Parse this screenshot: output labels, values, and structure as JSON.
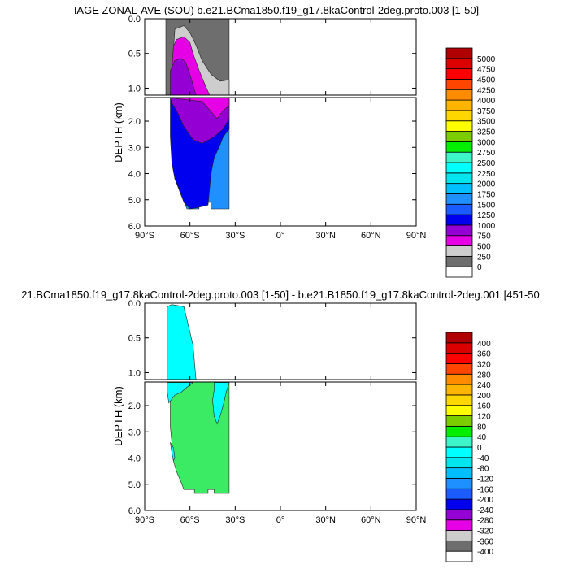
{
  "chart_data": [
    {
      "type": "heatmap",
      "title": "IAGE ZONAL-AVE (SOU) b.e21.BCma1850.f19_g17.8kaControl-2deg.proto.003 [1-50]",
      "ylabel": "DEPTH (km)",
      "x_ticks": [
        "90°S",
        "60°S",
        "30°S",
        "0°",
        "30°N",
        "60°N",
        "90°N"
      ],
      "x_tick_values": [
        -90,
        -60,
        -30,
        0,
        30,
        60,
        90
      ],
      "xlim": [
        -90,
        90
      ],
      "y_upper_ticks": [
        "0.0",
        "0.5",
        "1.0"
      ],
      "y_upper_values": [
        0,
        0.5,
        1.0
      ],
      "y_lower_ticks": [
        "2.0",
        "3.0",
        "4.0",
        "5.0",
        "6.0"
      ],
      "y_lower_values": [
        2,
        3,
        4,
        5,
        6
      ],
      "ylim_upper": [
        0,
        1.1
      ],
      "ylim_lower": [
        1.1,
        6
      ],
      "colorbar": {
        "levels": [
          "0",
          "250",
          "500",
          "750",
          "1000",
          "1250",
          "1500",
          "1750",
          "2000",
          "2250",
          "2500",
          "2750",
          "3000",
          "3250",
          "3500",
          "3750",
          "4000",
          "4250",
          "4500",
          "4750",
          "5000"
        ],
        "colors": [
          "#ffffff",
          "#6e6e6e",
          "#cdcdcd",
          "#e600e6",
          "#9400d3",
          "#0000ee",
          "#1a5cff",
          "#1e90ff",
          "#00bfff",
          "#00e5ee",
          "#00ffff",
          "#3cf5c8",
          "#00ee00",
          "#7ccd00",
          "#ffff00",
          "#ffd700",
          "#ffb400",
          "#ff8c00",
          "#ff4500",
          "#ff0000",
          "#dd0000",
          "#b00000"
        ]
      },
      "regions": [
        {
          "color": "#1e90ff",
          "poly": [
            [
              -72,
              1.12
            ],
            [
              -34,
              1.12
            ],
            [
              -34,
              5.35
            ],
            [
              -46,
              5.35
            ],
            [
              -46,
              5.1
            ],
            [
              -54,
              5.1
            ],
            [
              -54,
              5.35
            ],
            [
              -62,
              5.35
            ],
            [
              -66,
              4.8
            ],
            [
              -70,
              4.2
            ],
            [
              -72,
              3.0
            ]
          ]
        },
        {
          "color": "#0000ee",
          "poly": [
            [
              -73,
              1.12
            ],
            [
              -34,
              1.12
            ],
            [
              -34,
              2.3
            ],
            [
              -38,
              2.6
            ],
            [
              -40,
              2.9
            ],
            [
              -44,
              3.4
            ],
            [
              -46,
              4.0
            ],
            [
              -47,
              4.6
            ],
            [
              -48,
              5.2
            ],
            [
              -55,
              5.3
            ],
            [
              -60,
              5.35
            ],
            [
              -64,
              5.1
            ],
            [
              -67,
              4.6
            ],
            [
              -70,
              4.2
            ],
            [
              -72,
              3.6
            ],
            [
              -73,
              2.6
            ]
          ]
        },
        {
          "color": "#9400d3",
          "poly": [
            [
              -73,
              1.12
            ],
            [
              -34,
              1.12
            ],
            [
              -34,
              1.9
            ],
            [
              -38,
              2.3
            ],
            [
              -44,
              2.6
            ],
            [
              -52,
              2.85
            ],
            [
              -58,
              2.7
            ],
            [
              -64,
              2.2
            ],
            [
              -68,
              1.7
            ],
            [
              -72,
              1.3
            ]
          ]
        },
        {
          "color": "#e600e6",
          "poly": [
            [
              -72,
              1.12
            ],
            [
              -34,
              1.12
            ],
            [
              -34,
              1.4
            ],
            [
              -38,
              1.6
            ],
            [
              -42,
              1.9
            ],
            [
              -48,
              1.5
            ],
            [
              -52,
              1.25
            ]
          ]
        },
        {
          "color": "#6e6e6e",
          "poly": [
            [
              -76,
              0
            ],
            [
              -34,
              0
            ],
            [
              -34,
              1.1
            ],
            [
              -76,
              1.1
            ]
          ]
        },
        {
          "color": "#cdcdcd",
          "poly": [
            [
              -70,
              0.15
            ],
            [
              -64,
              0.1
            ],
            [
              -60,
              0.2
            ],
            [
              -56,
              0.38
            ],
            [
              -52,
              0.6
            ],
            [
              -46,
              0.8
            ],
            [
              -40,
              0.9
            ],
            [
              -34,
              0.88
            ],
            [
              -34,
              1.1
            ],
            [
              -73,
              1.1
            ]
          ]
        },
        {
          "color": "#e600e6",
          "poly": [
            [
              -71,
              0.4
            ],
            [
              -69,
              0.3
            ],
            [
              -64,
              0.26
            ],
            [
              -60,
              0.34
            ],
            [
              -58,
              0.5
            ],
            [
              -54,
              0.74
            ],
            [
              -50,
              0.95
            ],
            [
              -47,
              1.1
            ],
            [
              -73,
              1.1
            ]
          ]
        },
        {
          "color": "#9400d3",
          "poly": [
            [
              -73,
              0.75
            ],
            [
              -70,
              0.6
            ],
            [
              -66,
              0.57
            ],
            [
              -63,
              0.62
            ],
            [
              -60,
              0.8
            ],
            [
              -58,
              0.95
            ],
            [
              -56,
              1.1
            ],
            [
              -73,
              1.1
            ]
          ]
        }
      ]
    },
    {
      "type": "heatmap",
      "title": "21.BCma1850.f19_g17.8kaControl-2deg.proto.003 [1-50] - b.e21.B1850.f19_g17.8kaControl-2deg.001 [451-50",
      "ylabel": "DEPTH (km)",
      "x_ticks": [
        "90°S",
        "60°S",
        "30°S",
        "0°",
        "30°N",
        "60°N",
        "90°N"
      ],
      "x_tick_values": [
        -90,
        -60,
        -30,
        0,
        30,
        60,
        90
      ],
      "xlim": [
        -90,
        90
      ],
      "y_upper_ticks": [
        "0.0",
        "0.5",
        "1.0"
      ],
      "y_upper_values": [
        0,
        0.5,
        1.0
      ],
      "y_lower_ticks": [
        "2.0",
        "3.0",
        "4.0",
        "5.0",
        "6.0"
      ],
      "y_lower_values": [
        2,
        3,
        4,
        5,
        6
      ],
      "ylim_upper": [
        0,
        1.1
      ],
      "ylim_lower": [
        1.1,
        6
      ],
      "colorbar": {
        "levels": [
          "-400",
          "-360",
          "-320",
          "-280",
          "-240",
          "-200",
          "-160",
          "-120",
          "-80",
          "-40",
          "0",
          "40",
          "80",
          "120",
          "160",
          "200",
          "240",
          "280",
          "320",
          "360",
          "400"
        ],
        "colors": [
          "#ffffff",
          "#6e6e6e",
          "#cdcdcd",
          "#e600e6",
          "#9400d3",
          "#0000ee",
          "#1a5cff",
          "#1e90ff",
          "#00bfff",
          "#00e5ee",
          "#00ffff",
          "#3cf5c8",
          "#00ee00",
          "#7ccd00",
          "#ffff00",
          "#ffd700",
          "#ffb400",
          "#ff8c00",
          "#ff4500",
          "#ff0000",
          "#dd0000",
          "#b00000"
        ]
      },
      "regions": [
        {
          "color": "#3ceb64",
          "poly": [
            [
              -76,
              0
            ],
            [
              -34,
              0
            ],
            [
              -34,
              5.35
            ],
            [
              -44,
              5.35
            ],
            [
              -44,
              5.2
            ],
            [
              -48,
              5.2
            ],
            [
              -48,
              5.35
            ],
            [
              -57,
              5.35
            ],
            [
              -57,
              5.2
            ],
            [
              -64,
              5.2
            ],
            [
              -66,
              4.9
            ],
            [
              -69,
              4.5
            ],
            [
              -71,
              4.1
            ],
            [
              -72,
              3.4
            ],
            [
              -73,
              2.8
            ],
            [
              -73,
              1.12
            ],
            [
              -76,
              1.1
            ]
          ]
        },
        {
          "color": "#00ffff",
          "poly": [
            [
              -75,
              0.05
            ],
            [
              -72,
              0.02
            ],
            [
              -64,
              0.05
            ],
            [
              -58,
              0.6
            ],
            [
              -56,
              1.1
            ],
            [
              -75,
              1.1
            ]
          ]
        },
        {
          "color": "#00ffff",
          "poly": [
            [
              -75,
              1.12
            ],
            [
              -58,
              1.12
            ],
            [
              -62,
              1.3
            ],
            [
              -66,
              1.5
            ],
            [
              -70,
              1.6
            ],
            [
              -74,
              1.9
            ],
            [
              -75,
              1.5
            ]
          ]
        },
        {
          "color": "#00ffff",
          "poly": [
            [
              -44,
              1.12
            ],
            [
              -34,
              1.12
            ],
            [
              -36,
              1.5
            ],
            [
              -38,
              2.0
            ],
            [
              -40,
              2.4
            ],
            [
              -42,
              2.7
            ],
            [
              -44,
              2.4
            ],
            [
              -45,
              1.8
            ],
            [
              -44,
              1.4
            ]
          ]
        },
        {
          "color": "#00ffff",
          "poly": [
            [
              -73,
              3.4
            ],
            [
              -71,
              3.6
            ],
            [
              -70,
              4.0
            ],
            [
              -71,
              4.1
            ],
            [
              -72,
              3.8
            ]
          ]
        }
      ]
    }
  ]
}
